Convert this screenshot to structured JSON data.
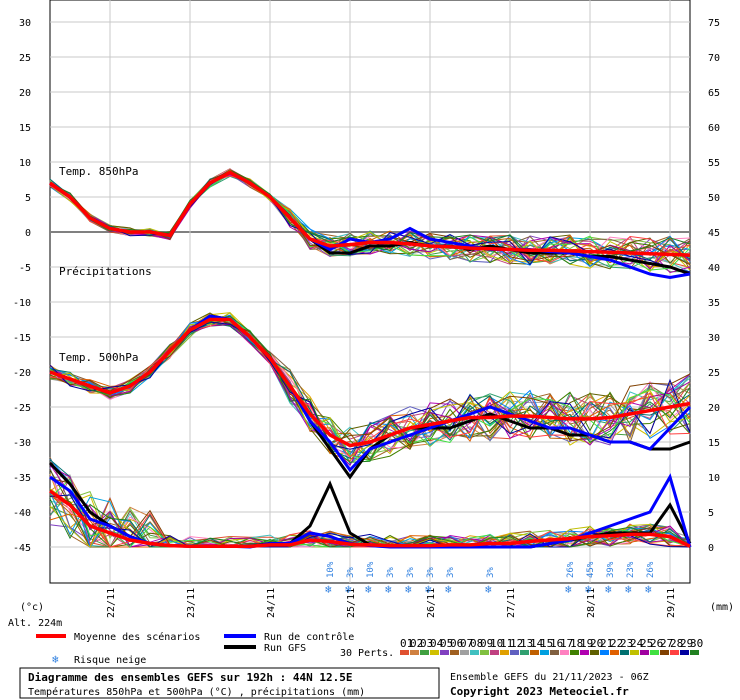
{
  "chart_data": {
    "type": "line",
    "left_axis_ticks": [
      "30",
      "25",
      "20",
      "15",
      "10",
      "5",
      "0",
      "-5",
      "-10",
      "-15",
      "-20",
      "-25",
      "-30",
      "-35",
      "-40",
      "-45"
    ],
    "right_axis_ticks": [
      "75",
      "70",
      "65",
      "60",
      "55",
      "50",
      "45",
      "40",
      "35",
      "30",
      "25",
      "20",
      "15",
      "10",
      "5",
      "0"
    ],
    "left_unit": "(°c)",
    "right_unit": "(mm)",
    "altitude": "Alt. 224m",
    "date_labels": [
      "22/11",
      "23/11",
      "24/11",
      "25/11",
      "26/11",
      "27/11",
      "28/11",
      "29/11"
    ],
    "annotations": {
      "t850": "Temp. 850hPa",
      "precip": "Précipitations",
      "t500": "Temp. 500hPa"
    },
    "x_hours": [
      0,
      6,
      12,
      18,
      24,
      30,
      36,
      42,
      48,
      54,
      60,
      66,
      72,
      78,
      84,
      90,
      96,
      102,
      108,
      114,
      120,
      126,
      132,
      138,
      144,
      150,
      156,
      162,
      168,
      174,
      180,
      186,
      192
    ],
    "series": [
      {
        "name": "Moyenne des scénarios",
        "color": "#ff0000",
        "t850": [
          7,
          5,
          2,
          0.5,
          0,
          0,
          -0.5,
          4,
          7,
          8.5,
          7,
          5,
          2,
          -1,
          -2,
          -1.8,
          -1.5,
          -1.5,
          -1.7,
          -2,
          -2.1,
          -2.3,
          -2.4,
          -2.5,
          -2.6,
          -2.6,
          -2.7,
          -2.8,
          -2.9,
          -3,
          -3.1,
          -3.2,
          -3.3
        ],
        "t500": [
          -20,
          -21,
          -22,
          -23,
          -22,
          -20,
          -17,
          -14,
          -12.5,
          -12.5,
          -15,
          -18,
          -22,
          -26,
          -29,
          -30.5,
          -30,
          -29,
          -28,
          -27.5,
          -27,
          -26.5,
          -26.5,
          -26.3,
          -26.3,
          -26.5,
          -26.7,
          -26.7,
          -26.5,
          -26,
          -25.5,
          -25,
          -24.5
        ],
        "precip": [
          8,
          6,
          3,
          2,
          1,
          0.5,
          0.2,
          0.1,
          0.1,
          0.1,
          0.1,
          0.3,
          0.3,
          1,
          0.8,
          0.4,
          0.3,
          0.2,
          0.2,
          0.2,
          0.3,
          0.3,
          0.5,
          0.5,
          0.8,
          1,
          1.2,
          1.5,
          1.6,
          1.8,
          1.8,
          1.5,
          0.1
        ]
      },
      {
        "name": "Run de contrôle",
        "color": "#0000ff",
        "t850": [
          7,
          5,
          2,
          0.5,
          0,
          0,
          -0.5,
          4,
          7,
          8.5,
          7,
          5,
          2,
          -1,
          -2.5,
          -1,
          -1.5,
          -1,
          0.5,
          -1,
          -1.5,
          -2,
          -2.5,
          -2.5,
          -2.5,
          -2.8,
          -3,
          -3.5,
          -4,
          -5,
          -6,
          -6.5,
          -6
        ],
        "t500": [
          -20,
          -21,
          -22,
          -23,
          -22,
          -20,
          -17,
          -14,
          -12,
          -12.5,
          -15,
          -18,
          -22,
          -27,
          -30,
          -34,
          -31,
          -30,
          -29,
          -28,
          -27,
          -26,
          -25,
          -26,
          -27,
          -28,
          -28,
          -29,
          -30,
          -30,
          -31,
          -28,
          -25
        ],
        "precip": [
          10,
          8,
          4,
          3,
          1.5,
          0.5,
          0.2,
          0.1,
          0.1,
          0.1,
          0,
          0.5,
          0.5,
          2,
          1.5,
          0.5,
          0.2,
          0,
          0,
          0,
          0,
          0,
          0,
          0,
          0,
          0.5,
          1,
          2,
          3,
          4,
          5,
          10,
          0
        ]
      },
      {
        "name": "Run GFS",
        "color": "#000000",
        "t850": [
          7,
          5,
          2,
          0.5,
          0,
          0,
          -0.5,
          4,
          7,
          8.5,
          7,
          5,
          2,
          -1,
          -3,
          -3,
          -2,
          -2,
          -1.5,
          -2,
          -2,
          -2.5,
          -2,
          -2.5,
          -3,
          -3,
          -3,
          -3.5,
          -3.5,
          -4,
          -4.5,
          -5,
          -6
        ],
        "t500": [
          -20,
          -21,
          -22,
          -23,
          -22,
          -20,
          -17,
          -14,
          -12,
          -12.5,
          -15,
          -18,
          -22,
          -27,
          -31,
          -35,
          -31,
          -29,
          -28,
          -28,
          -28,
          -27,
          -26,
          -27,
          -28,
          -28,
          -29,
          -29,
          -30,
          -30,
          -31,
          -31,
          -30
        ],
        "precip": [
          12,
          9,
          5,
          3,
          1.5,
          0.5,
          0.2,
          0.1,
          0.1,
          0.1,
          0.1,
          0.5,
          0.5,
          3,
          9,
          2,
          0.3,
          0.1,
          0,
          0,
          0,
          0,
          0,
          0,
          0,
          0.5,
          1,
          1.5,
          2,
          2,
          2,
          6,
          0.5
        ]
      }
    ],
    "snow_risk": [
      "10%",
      "3%",
      "10%",
      "3%",
      "3%",
      "3%",
      "3%",
      "3%",
      "26%",
      "45%",
      "39%",
      "23%",
      "26%"
    ],
    "legend": {
      "mean": "Moyenne des scénarios",
      "control": "Run de contrôle",
      "gfs": "Run GFS",
      "snow": "Risque neige",
      "perts": "30 Perts.",
      "pert_numbers": [
        "01",
        "02",
        "03",
        "04",
        "05",
        "06",
        "07",
        "08",
        "09",
        "10",
        "11",
        "12",
        "13",
        "14",
        "15",
        "16",
        "17",
        "18",
        "19",
        "20",
        "21",
        "22",
        "23",
        "24",
        "25",
        "26",
        "27",
        "28",
        "29",
        "30"
      ],
      "pert_colors": [
        "#e05030",
        "#d08040",
        "#40a040",
        "#d0c000",
        "#8040c0",
        "#a06020",
        "#a0a0a0",
        "#40c0c0",
        "#80c040",
        "#c04080",
        "#e0a000",
        "#6060c0",
        "#30a070",
        "#c06000",
        "#00a0e0",
        "#806040",
        "#ff80c0",
        "#408000",
        "#b000b0",
        "#606000",
        "#0080ff",
        "#e06000",
        "#007070",
        "#c0c000",
        "#a000a0",
        "#40e040",
        "#804000",
        "#ff4040",
        "#0000a0",
        "#208020"
      ]
    },
    "footer": {
      "title": "Diagramme des ensembles GEFS sur 192h : 44N 12.5E",
      "subtitle": "Températures 850hPa et 500hPa (°C) , précipitations (mm)",
      "run": "Ensemble GEFS du 21/11/2023 - 06Z",
      "copyright": "Copyright 2023 Meteociel.fr"
    }
  }
}
